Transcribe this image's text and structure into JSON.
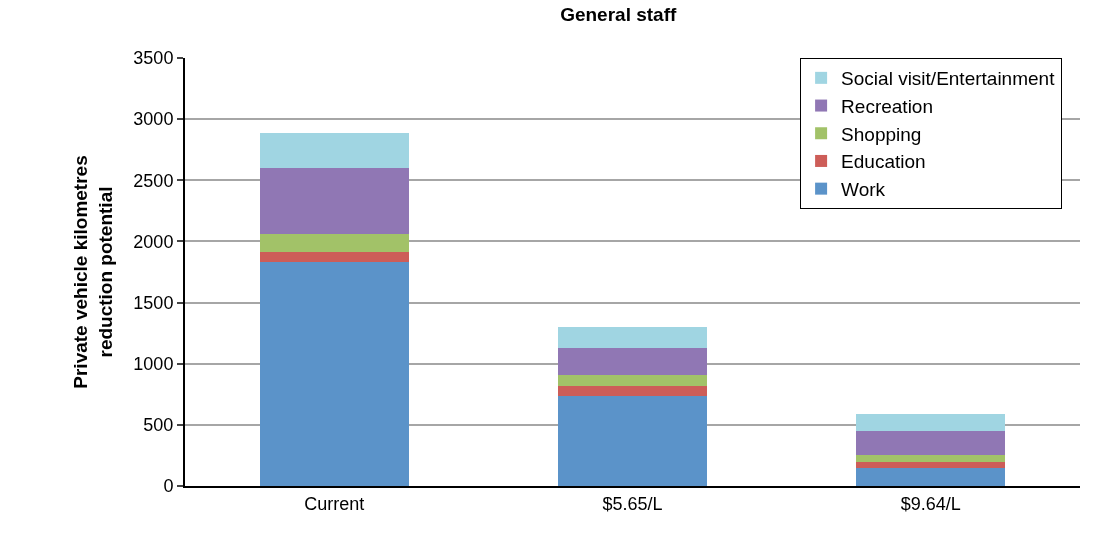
{
  "chart_data": {
    "type": "bar",
    "title": "General staff",
    "ylabel": "Private vehicle kilometres reduction potential",
    "categories": [
      "Current",
      "$5.65/L",
      "$9.64/L"
    ],
    "stacked": true,
    "series": [
      {
        "name": "Work",
        "color": "#5b93c9",
        "values": [
          1830,
          740,
          150
        ]
      },
      {
        "name": "Education",
        "color": "#cd5d58",
        "values": [
          80,
          80,
          50
        ]
      },
      {
        "name": "Shopping",
        "color": "#a2c268",
        "values": [
          150,
          90,
          50
        ]
      },
      {
        "name": "Recreation",
        "color": "#9077b4",
        "values": [
          540,
          220,
          200
        ]
      },
      {
        "name": "Social visit/Entertainment",
        "color": "#a0d5e2",
        "values": [
          290,
          170,
          140
        ]
      }
    ],
    "ylim": [
      0,
      3500
    ],
    "yticks": [
      0,
      500,
      1000,
      1500,
      2000,
      2500,
      3000,
      3500
    ],
    "grid": "y",
    "legend": "top right"
  }
}
